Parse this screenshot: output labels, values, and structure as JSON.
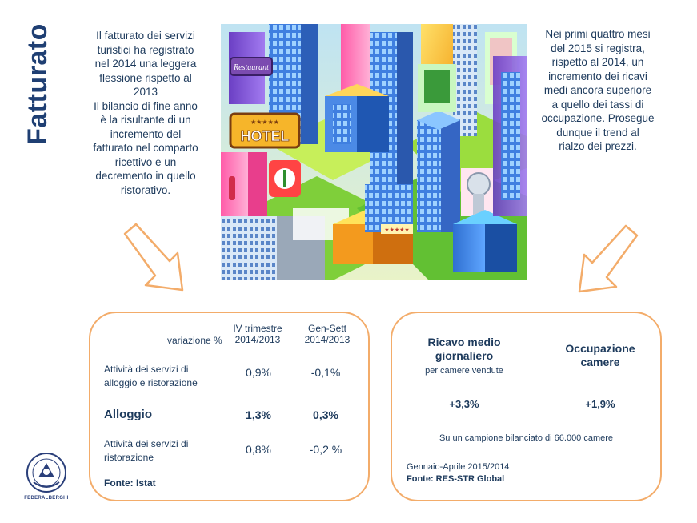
{
  "title": "Fatturato",
  "left_text": [
    "Il fatturato dei servizi",
    "turistici ha registrato",
    "nel 2014 una leggera",
    "flessione rispetto al",
    "2013",
    "Il bilancio di fine anno",
    "è la risultante di un",
    "incremento del",
    "fatturato nel comparto",
    "ricettivo e un",
    "decremento in quello",
    "ristorativo."
  ],
  "right_text": [
    "Nei primi quattro mesi",
    "del 2015 si registra,",
    "rispetto al 2014,  un",
    "incremento dei ricavi",
    "medi ancora superiore",
    "a quello dei tassi di",
    "occupazione.  Prosegue",
    "dunque il trend al",
    "rialzo dei prezzi."
  ],
  "illustration": {
    "restaurant_sign": "Restaurant",
    "hotel_sign": "HOTEL"
  },
  "table": {
    "header_label": "variazione %",
    "col1_line1": "IV trimestre",
    "col1_line2": "2014/2013",
    "col2_line1": "Gen-Sett",
    "col2_line2": "2014/2013",
    "rows": [
      {
        "label1": "Attività dei servizi di",
        "label2": "alloggio e ristorazione",
        "v1": "0,9%",
        "v2": "-0,1%"
      },
      {
        "label1": "Alloggio",
        "label2": "",
        "v1": "1,3%",
        "v2": "0,3%"
      },
      {
        "label1": "Attività dei servizi di",
        "label2": "ristorazione",
        "v1": "0,8%",
        "v2": "-0,2 %"
      }
    ],
    "source": "Fonte: Istat"
  },
  "kpi": {
    "k1_line1": "Ricavo medio",
    "k1_line2": "giornaliero",
    "k1_sub": "per camere vendute",
    "k1_value": "+3,3%",
    "k2_line1": "Occupazione",
    "k2_line2": "camere",
    "k2_value": "+1,9%",
    "sample_note": "Su un campione bilanciato di 66.000 camere",
    "period": "Gennaio-Aprile 2015/2014",
    "source": "Fonte: RES-STR Global"
  },
  "logo_label": "FEDERALBERGHI",
  "colors": {
    "title": "#1f3f73",
    "text": "#1d3a5c",
    "box_border": "#f3ac6a"
  }
}
